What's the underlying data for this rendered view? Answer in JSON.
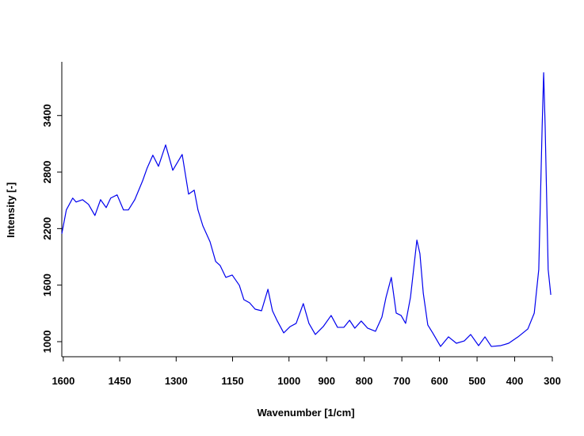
{
  "chart_data": {
    "type": "line",
    "xlabel": "Wavenumber [1/cm]",
    "ylabel": "Intensity [-]",
    "x": [
      1604,
      1592,
      1575,
      1566,
      1549,
      1533,
      1516,
      1501,
      1486,
      1474,
      1457,
      1440,
      1427,
      1410,
      1389,
      1377,
      1362,
      1347,
      1328,
      1309,
      1284,
      1267,
      1252,
      1242,
      1229,
      1210,
      1195,
      1183,
      1168,
      1151,
      1132,
      1120,
      1105,
      1090,
      1073,
      1056,
      1044,
      1031,
      1014,
      997,
      981,
      962,
      947,
      930,
      909,
      888,
      871,
      854,
      839,
      825,
      808,
      791,
      770,
      753,
      742,
      728,
      715,
      702,
      690,
      677,
      660,
      652,
      643,
      631,
      618,
      597,
      576,
      555,
      534,
      517,
      496,
      479,
      462,
      437,
      416,
      391,
      365,
      348,
      336,
      327,
      323,
      319,
      311,
      304
    ],
    "series": [
      {
        "name": "spectrum",
        "color": "#0000ee",
        "values": [
          2145,
          2398,
          2524,
          2482,
          2507,
          2457,
          2339,
          2507,
          2423,
          2524,
          2558,
          2398,
          2398,
          2507,
          2709,
          2844,
          2979,
          2861,
          3088,
          2819,
          2987,
          2566,
          2608,
          2398,
          2229,
          2061,
          1851,
          1808,
          1682,
          1707,
          1598,
          1446,
          1413,
          1345,
          1328,
          1556,
          1328,
          1219,
          1093,
          1160,
          1194,
          1404,
          1194,
          1076,
          1160,
          1278,
          1152,
          1152,
          1227,
          1143,
          1219,
          1143,
          1110,
          1261,
          1472,
          1682,
          1303,
          1278,
          1194,
          1472,
          2078,
          1935,
          1514,
          1177,
          1093,
          949,
          1051,
          983,
          1008,
          1076,
          958,
          1051,
          949,
          958,
          983,
          1051,
          1135,
          1303,
          1766,
          3282,
          3855,
          3282,
          1766,
          1497
        ]
      }
    ],
    "xlim": [
      1604,
      300
    ],
    "ylim": [
      840,
      3970
    ],
    "xticks": [
      1600,
      1450,
      1300,
      1150,
      1000,
      900,
      800,
      700,
      600,
      500,
      400,
      300
    ],
    "yticks": [
      1000,
      1600,
      2200,
      2800,
      3400
    ]
  }
}
